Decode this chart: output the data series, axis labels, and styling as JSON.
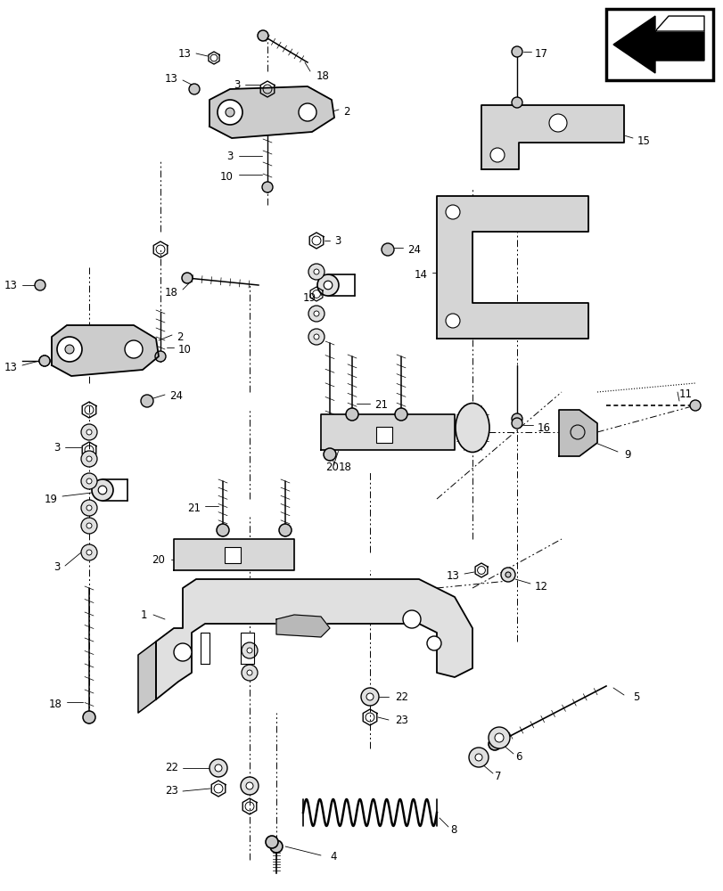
{
  "fig_width": 8.12,
  "fig_height": 10.0,
  "dpi": 100,
  "bg_color": "#ffffff",
  "lc": "#000000",
  "gray_fill": "#c8c8c8",
  "light_gray": "#e0e0e0",
  "fs": 8.5
}
